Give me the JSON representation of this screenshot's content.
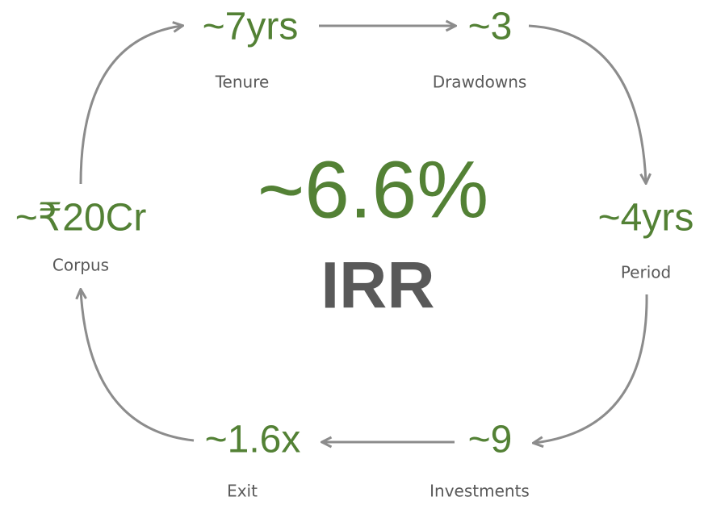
{
  "center": {
    "value": "~6.6%",
    "label": "IRR"
  },
  "nodes": [
    {
      "value": "~7yrs",
      "label": "Tenure"
    },
    {
      "value": "~3",
      "label": "Drawdowns"
    },
    {
      "value": "~4yrs",
      "label": "Period"
    },
    {
      "value": "~9",
      "label": "Investments"
    },
    {
      "value": "~1.6x",
      "label": "Exit"
    },
    {
      "value": "~₹20Cr",
      "label": "Corpus"
    }
  ]
}
